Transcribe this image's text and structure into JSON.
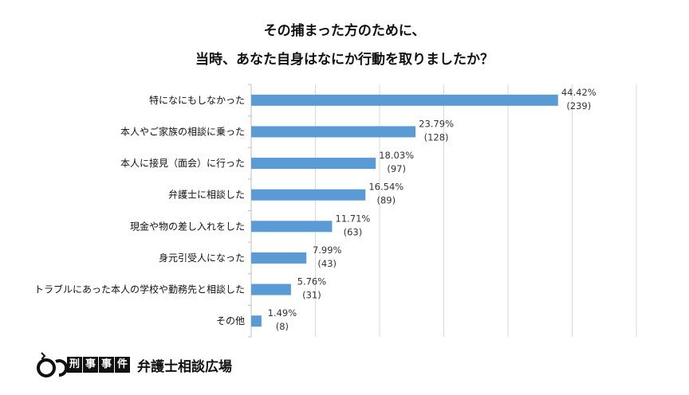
{
  "chart_data": {
    "type": "bar",
    "orientation": "horizontal",
    "title": [
      "その捕まった方のために、",
      "当時、あなた自身はなにか行動を取りましたか？"
    ],
    "categories": [
      "特になにもしなかった",
      "本人やご家族の相談に乗った",
      "本人に接見（面会）に行った",
      "弁護士に相談した",
      "現金や物の差し入れをした",
      "身元引受人になった",
      "トラブルにあった本人の学校や勤務先と相談した",
      "その他"
    ],
    "values": [
      239,
      128,
      97,
      89,
      63,
      43,
      31,
      8
    ],
    "percent_labels": [
      "44.42%",
      "23.79%",
      "18.03%",
      "16.54%",
      "11.71%",
      "7.99%",
      "5.76%",
      "1.49%"
    ],
    "count_labels": [
      "(239)",
      "(128)",
      "(97)",
      "(89)",
      "(63)",
      "(43)",
      "(31)",
      "(8)"
    ],
    "xlim": [
      0,
      300
    ],
    "grid_step": 50,
    "grid": true,
    "bar_color": "#5b9bd5"
  },
  "logo": {
    "boxes": [
      "刑",
      "事",
      "事",
      "件"
    ],
    "brand": "弁護士相談広場",
    "icon": "handcuffs-icon"
  }
}
